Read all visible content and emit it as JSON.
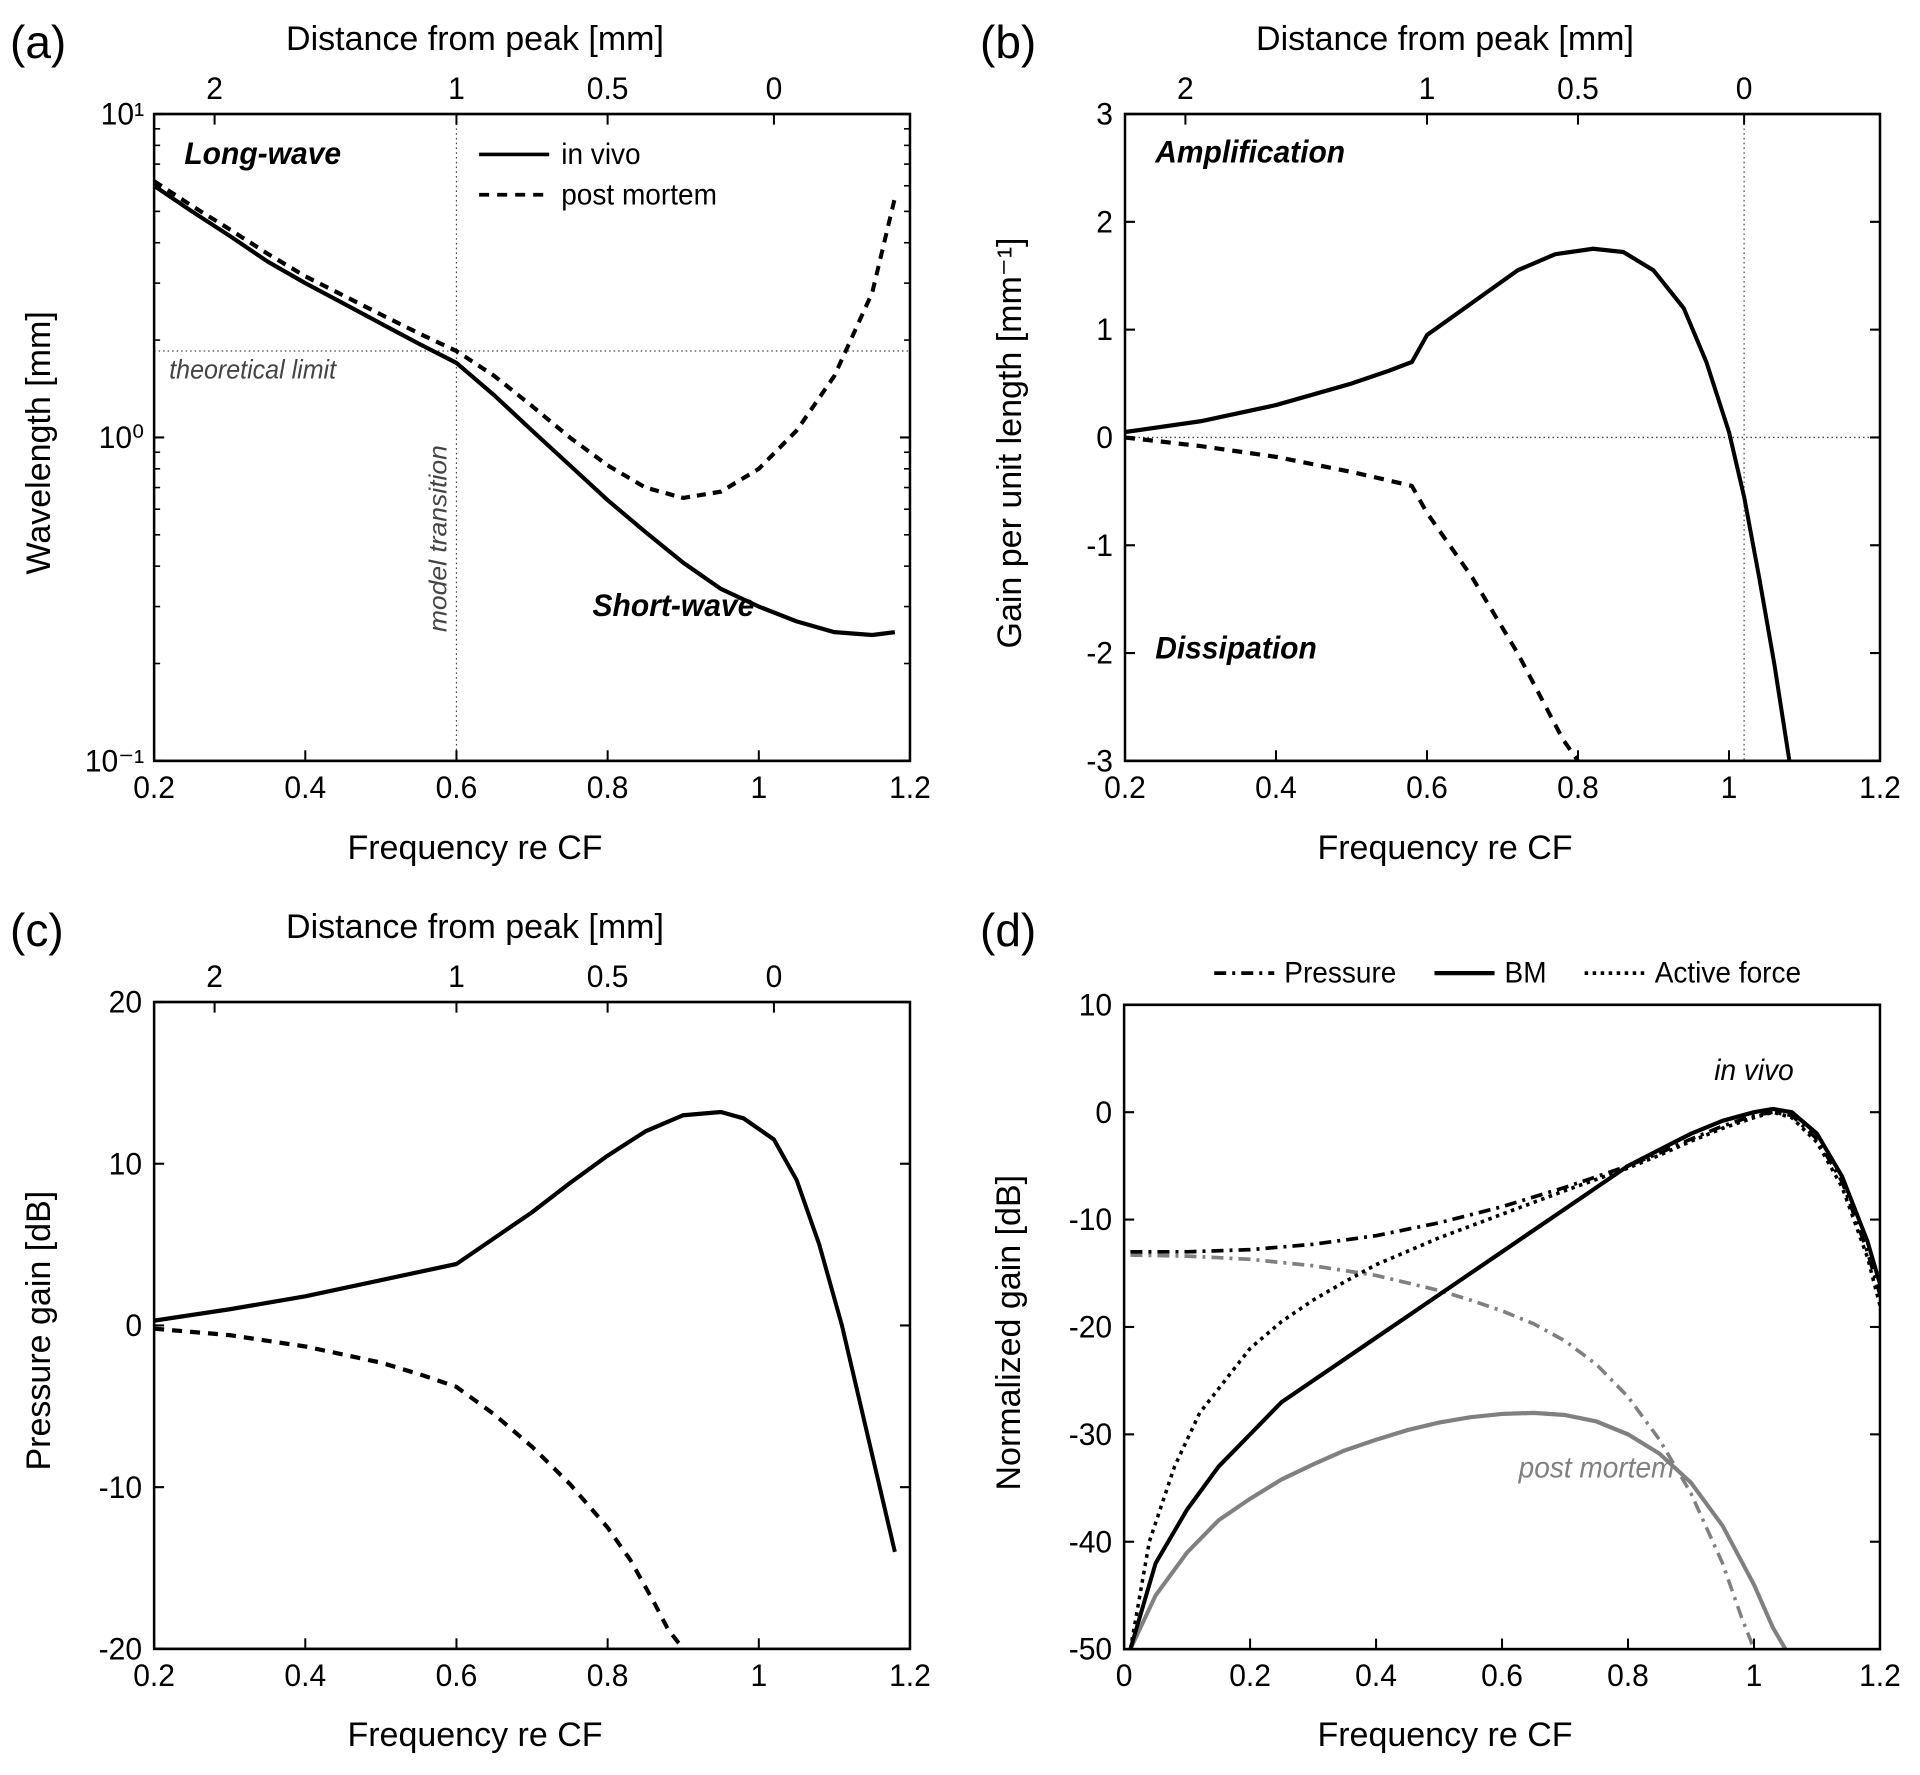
{
  "panelA": {
    "label": "(a)",
    "top_axis_label": "Distance from peak [mm]",
    "bottom_axis_label": "Frequency re CF",
    "left_axis_label": "Wavelength [mm]",
    "xlim": [
      0.2,
      1.2
    ],
    "ylim": [
      0.1,
      10
    ],
    "yscale": "log",
    "top_axis_values": [
      2,
      1,
      0.5,
      0
    ],
    "top_axis_positions": [
      0.28,
      0.6,
      0.8,
      1.02
    ],
    "bottom_ticks": [
      0.2,
      0.4,
      0.6,
      0.8,
      1.0,
      1.2
    ],
    "y_ticks": [
      0.1,
      1,
      10
    ],
    "y_tick_labels": [
      "10⁻¹",
      "10⁰",
      "10¹"
    ],
    "theoretical_limit_y": 1.85,
    "model_transition_x": 0.6,
    "annotations": {
      "long_wave": "Long-wave",
      "short_wave": "Short-wave",
      "theoretical_limit": "theoretical limit",
      "model_transition": "model transition"
    },
    "legend": [
      "in vivo",
      "post mortem"
    ],
    "series": {
      "in_vivo": {
        "color": "#000000",
        "dash": "none",
        "width": 4,
        "points": [
          [
            0.2,
            6.0
          ],
          [
            0.25,
            5.0
          ],
          [
            0.3,
            4.2
          ],
          [
            0.35,
            3.5
          ],
          [
            0.4,
            3.0
          ],
          [
            0.45,
            2.6
          ],
          [
            0.5,
            2.25
          ],
          [
            0.55,
            1.95
          ],
          [
            0.6,
            1.7
          ],
          [
            0.65,
            1.35
          ],
          [
            0.7,
            1.05
          ],
          [
            0.75,
            0.82
          ],
          [
            0.8,
            0.64
          ],
          [
            0.85,
            0.51
          ],
          [
            0.9,
            0.41
          ],
          [
            0.95,
            0.34
          ],
          [
            1.0,
            0.3
          ],
          [
            1.05,
            0.27
          ],
          [
            1.1,
            0.25
          ],
          [
            1.15,
            0.245
          ],
          [
            1.18,
            0.25
          ]
        ]
      },
      "post_mortem": {
        "color": "#000000",
        "dash": "9,7",
        "width": 4,
        "points": [
          [
            0.2,
            6.2
          ],
          [
            0.25,
            5.2
          ],
          [
            0.3,
            4.4
          ],
          [
            0.35,
            3.7
          ],
          [
            0.4,
            3.15
          ],
          [
            0.45,
            2.75
          ],
          [
            0.5,
            2.4
          ],
          [
            0.55,
            2.1
          ],
          [
            0.6,
            1.85
          ],
          [
            0.65,
            1.55
          ],
          [
            0.7,
            1.25
          ],
          [
            0.75,
            1.0
          ],
          [
            0.8,
            0.82
          ],
          [
            0.85,
            0.7
          ],
          [
            0.9,
            0.65
          ],
          [
            0.95,
            0.68
          ],
          [
            1.0,
            0.8
          ],
          [
            1.05,
            1.05
          ],
          [
            1.1,
            1.55
          ],
          [
            1.15,
            2.8
          ],
          [
            1.18,
            5.5
          ]
        ]
      }
    },
    "colors": {
      "frame": "#000000",
      "dotted": "#555555"
    }
  },
  "panelB": {
    "label": "(b)",
    "top_axis_label": "Distance from peak [mm]",
    "bottom_axis_label": "Frequency re CF",
    "left_axis_label": "Gain per unit length [mm⁻¹]",
    "xlim": [
      0.2,
      1.2
    ],
    "ylim": [
      -3,
      3
    ],
    "top_axis_values": [
      2,
      1,
      0.5,
      0
    ],
    "top_axis_positions": [
      0.28,
      0.6,
      0.8,
      1.02
    ],
    "bottom_ticks": [
      0.2,
      0.4,
      0.6,
      0.8,
      1.0,
      1.2
    ],
    "y_ticks": [
      -3,
      -2,
      -1,
      0,
      1,
      2,
      3
    ],
    "model_transition_x": 1.02,
    "annotations": {
      "amplification": "Amplification",
      "dissipation": "Dissipation"
    },
    "series": {
      "in_vivo": {
        "color": "#000000",
        "dash": "none",
        "width": 4,
        "points": [
          [
            0.2,
            0.05
          ],
          [
            0.3,
            0.15
          ],
          [
            0.4,
            0.3
          ],
          [
            0.5,
            0.5
          ],
          [
            0.55,
            0.62
          ],
          [
            0.58,
            0.7
          ],
          [
            0.6,
            0.95
          ],
          [
            0.63,
            1.1
          ],
          [
            0.68,
            1.35
          ],
          [
            0.72,
            1.55
          ],
          [
            0.77,
            1.7
          ],
          [
            0.82,
            1.75
          ],
          [
            0.86,
            1.72
          ],
          [
            0.9,
            1.55
          ],
          [
            0.94,
            1.2
          ],
          [
            0.97,
            0.7
          ],
          [
            1.0,
            0.05
          ],
          [
            1.02,
            -0.55
          ],
          [
            1.04,
            -1.3
          ],
          [
            1.06,
            -2.1
          ],
          [
            1.08,
            -3.0
          ]
        ]
      },
      "post_mortem": {
        "color": "#000000",
        "dash": "10,8",
        "width": 4,
        "points": [
          [
            0.2,
            0.0
          ],
          [
            0.3,
            -0.08
          ],
          [
            0.4,
            -0.18
          ],
          [
            0.5,
            -0.32
          ],
          [
            0.55,
            -0.4
          ],
          [
            0.58,
            -0.45
          ],
          [
            0.6,
            -0.7
          ],
          [
            0.63,
            -1.0
          ],
          [
            0.66,
            -1.3
          ],
          [
            0.69,
            -1.65
          ],
          [
            0.72,
            -2.0
          ],
          [
            0.75,
            -2.4
          ],
          [
            0.78,
            -2.8
          ],
          [
            0.8,
            -3.0
          ]
        ]
      }
    }
  },
  "panelC": {
    "label": "(c)",
    "top_axis_label": "Distance from peak [mm]",
    "bottom_axis_label": "Frequency re CF",
    "left_axis_label": "Pressure gain [dB]",
    "xlim": [
      0.2,
      1.2
    ],
    "ylim": [
      -20,
      20
    ],
    "top_axis_values": [
      2,
      1,
      0.5,
      0
    ],
    "top_axis_positions": [
      0.28,
      0.6,
      0.8,
      1.02
    ],
    "bottom_ticks": [
      0.2,
      0.4,
      0.6,
      0.8,
      1.0,
      1.2
    ],
    "y_ticks": [
      -20,
      -10,
      0,
      10,
      20
    ],
    "series": {
      "in_vivo": {
        "color": "#000000",
        "dash": "none",
        "width": 4,
        "points": [
          [
            0.2,
            0.3
          ],
          [
            0.3,
            1.0
          ],
          [
            0.4,
            1.8
          ],
          [
            0.5,
            2.8
          ],
          [
            0.55,
            3.3
          ],
          [
            0.6,
            3.8
          ],
          [
            0.65,
            5.4
          ],
          [
            0.7,
            7.0
          ],
          [
            0.75,
            8.8
          ],
          [
            0.8,
            10.5
          ],
          [
            0.85,
            12.0
          ],
          [
            0.9,
            13.0
          ],
          [
            0.95,
            13.2
          ],
          [
            0.98,
            12.8
          ],
          [
            1.02,
            11.5
          ],
          [
            1.05,
            9.0
          ],
          [
            1.08,
            5.0
          ],
          [
            1.11,
            0.0
          ],
          [
            1.14,
            -6.0
          ],
          [
            1.17,
            -12.0
          ],
          [
            1.18,
            -14.0
          ]
        ]
      },
      "post_mortem": {
        "color": "#000000",
        "dash": "10,8",
        "width": 4,
        "points": [
          [
            0.2,
            -0.2
          ],
          [
            0.3,
            -0.6
          ],
          [
            0.4,
            -1.3
          ],
          [
            0.5,
            -2.3
          ],
          [
            0.55,
            -3.0
          ],
          [
            0.6,
            -3.8
          ],
          [
            0.65,
            -5.5
          ],
          [
            0.7,
            -7.5
          ],
          [
            0.75,
            -9.8
          ],
          [
            0.8,
            -12.5
          ],
          [
            0.83,
            -14.5
          ],
          [
            0.86,
            -17.0
          ],
          [
            0.88,
            -18.8
          ],
          [
            0.9,
            -20.0
          ]
        ]
      }
    }
  },
  "panelD": {
    "label": "(d)",
    "bottom_axis_label": "Frequency re CF",
    "left_axis_label": "Normalized gain [dB]",
    "xlim": [
      0,
      1.2
    ],
    "ylim": [
      -50,
      10
    ],
    "bottom_ticks": [
      0,
      0.2,
      0.4,
      0.6,
      0.8,
      1.0,
      1.2
    ],
    "y_ticks": [
      -50,
      -40,
      -30,
      -20,
      -10,
      0,
      10
    ],
    "legend": [
      "Pressure",
      "BM",
      "Active force"
    ],
    "annotations": {
      "in_vivo": "in vivo",
      "post_mortem": "post mortem"
    },
    "series": {
      "bm_black": {
        "color": "#000000",
        "dash": "none",
        "width": 4,
        "points": [
          [
            0.01,
            -50
          ],
          [
            0.05,
            -42
          ],
          [
            0.1,
            -37
          ],
          [
            0.15,
            -33
          ],
          [
            0.2,
            -30
          ],
          [
            0.25,
            -27
          ],
          [
            0.3,
            -25
          ],
          [
            0.35,
            -23
          ],
          [
            0.4,
            -21
          ],
          [
            0.45,
            -19
          ],
          [
            0.5,
            -17
          ],
          [
            0.55,
            -15
          ],
          [
            0.6,
            -13
          ],
          [
            0.65,
            -11
          ],
          [
            0.7,
            -9
          ],
          [
            0.75,
            -7
          ],
          [
            0.8,
            -5
          ],
          [
            0.85,
            -3.5
          ],
          [
            0.9,
            -2
          ],
          [
            0.95,
            -0.8
          ],
          [
            1.0,
            0
          ],
          [
            1.03,
            0.3
          ],
          [
            1.06,
            0
          ],
          [
            1.1,
            -2
          ],
          [
            1.14,
            -6
          ],
          [
            1.18,
            -12
          ],
          [
            1.2,
            -16
          ]
        ]
      },
      "pressure_black": {
        "color": "#000000",
        "dash": "12,6,3,6",
        "width": 3.5,
        "points": [
          [
            0.01,
            -13
          ],
          [
            0.1,
            -13
          ],
          [
            0.2,
            -12.8
          ],
          [
            0.3,
            -12.3
          ],
          [
            0.4,
            -11.5
          ],
          [
            0.5,
            -10.3
          ],
          [
            0.6,
            -8.8
          ],
          [
            0.7,
            -7.0
          ],
          [
            0.8,
            -5.0
          ],
          [
            0.85,
            -3.8
          ],
          [
            0.9,
            -2.5
          ],
          [
            0.95,
            -1.3
          ],
          [
            1.0,
            -0.3
          ],
          [
            1.03,
            0
          ],
          [
            1.06,
            -0.3
          ],
          [
            1.1,
            -2.5
          ],
          [
            1.14,
            -6.5
          ],
          [
            1.18,
            -13
          ],
          [
            1.2,
            -17
          ]
        ]
      },
      "active_black": {
        "color": "#000000",
        "dash": "3.5,4.5",
        "width": 3.5,
        "points": [
          [
            0.01,
            -50
          ],
          [
            0.04,
            -40
          ],
          [
            0.08,
            -33
          ],
          [
            0.12,
            -28
          ],
          [
            0.16,
            -25
          ],
          [
            0.2,
            -22
          ],
          [
            0.25,
            -19.5
          ],
          [
            0.3,
            -17.5
          ],
          [
            0.35,
            -15.8
          ],
          [
            0.4,
            -14.2
          ],
          [
            0.5,
            -11.7
          ],
          [
            0.6,
            -9.5
          ],
          [
            0.7,
            -7.3
          ],
          [
            0.8,
            -5.2
          ],
          [
            0.85,
            -4.0
          ],
          [
            0.9,
            -2.7
          ],
          [
            0.95,
            -1.5
          ],
          [
            1.0,
            -0.5
          ],
          [
            1.03,
            0
          ],
          [
            1.06,
            -0.5
          ],
          [
            1.1,
            -2.8
          ],
          [
            1.14,
            -7.0
          ],
          [
            1.18,
            -13.5
          ],
          [
            1.2,
            -18
          ]
        ]
      },
      "bm_gray": {
        "color": "#808080",
        "dash": "none",
        "width": 4,
        "points": [
          [
            0.01,
            -50
          ],
          [
            0.05,
            -45
          ],
          [
            0.1,
            -41
          ],
          [
            0.15,
            -38
          ],
          [
            0.2,
            -36
          ],
          [
            0.25,
            -34.2
          ],
          [
            0.3,
            -32.8
          ],
          [
            0.35,
            -31.5
          ],
          [
            0.4,
            -30.5
          ],
          [
            0.45,
            -29.6
          ],
          [
            0.5,
            -28.9
          ],
          [
            0.55,
            -28.4
          ],
          [
            0.6,
            -28.1
          ],
          [
            0.65,
            -28.0
          ],
          [
            0.7,
            -28.2
          ],
          [
            0.75,
            -28.8
          ],
          [
            0.8,
            -30.0
          ],
          [
            0.85,
            -31.8
          ],
          [
            0.9,
            -34.5
          ],
          [
            0.95,
            -38.5
          ],
          [
            1.0,
            -44.0
          ],
          [
            1.03,
            -48.0
          ],
          [
            1.05,
            -50.0
          ]
        ]
      },
      "pressure_gray": {
        "color": "#808080",
        "dash": "12,6,3,6",
        "width": 3.5,
        "points": [
          [
            0.01,
            -13.3
          ],
          [
            0.1,
            -13.4
          ],
          [
            0.2,
            -13.7
          ],
          [
            0.3,
            -14.3
          ],
          [
            0.4,
            -15.2
          ],
          [
            0.5,
            -16.6
          ],
          [
            0.55,
            -17.5
          ],
          [
            0.6,
            -18.5
          ],
          [
            0.65,
            -19.7
          ],
          [
            0.7,
            -21.3
          ],
          [
            0.75,
            -23.5
          ],
          [
            0.8,
            -26.5
          ],
          [
            0.85,
            -30.5
          ],
          [
            0.9,
            -35.5
          ],
          [
            0.95,
            -42.0
          ],
          [
            0.98,
            -47.0
          ],
          [
            1.0,
            -50.0
          ]
        ]
      }
    }
  },
  "style": {
    "frame_color": "#000000",
    "frame_width": 2.5,
    "tick_len": 10,
    "dotted_color": "#444444"
  }
}
